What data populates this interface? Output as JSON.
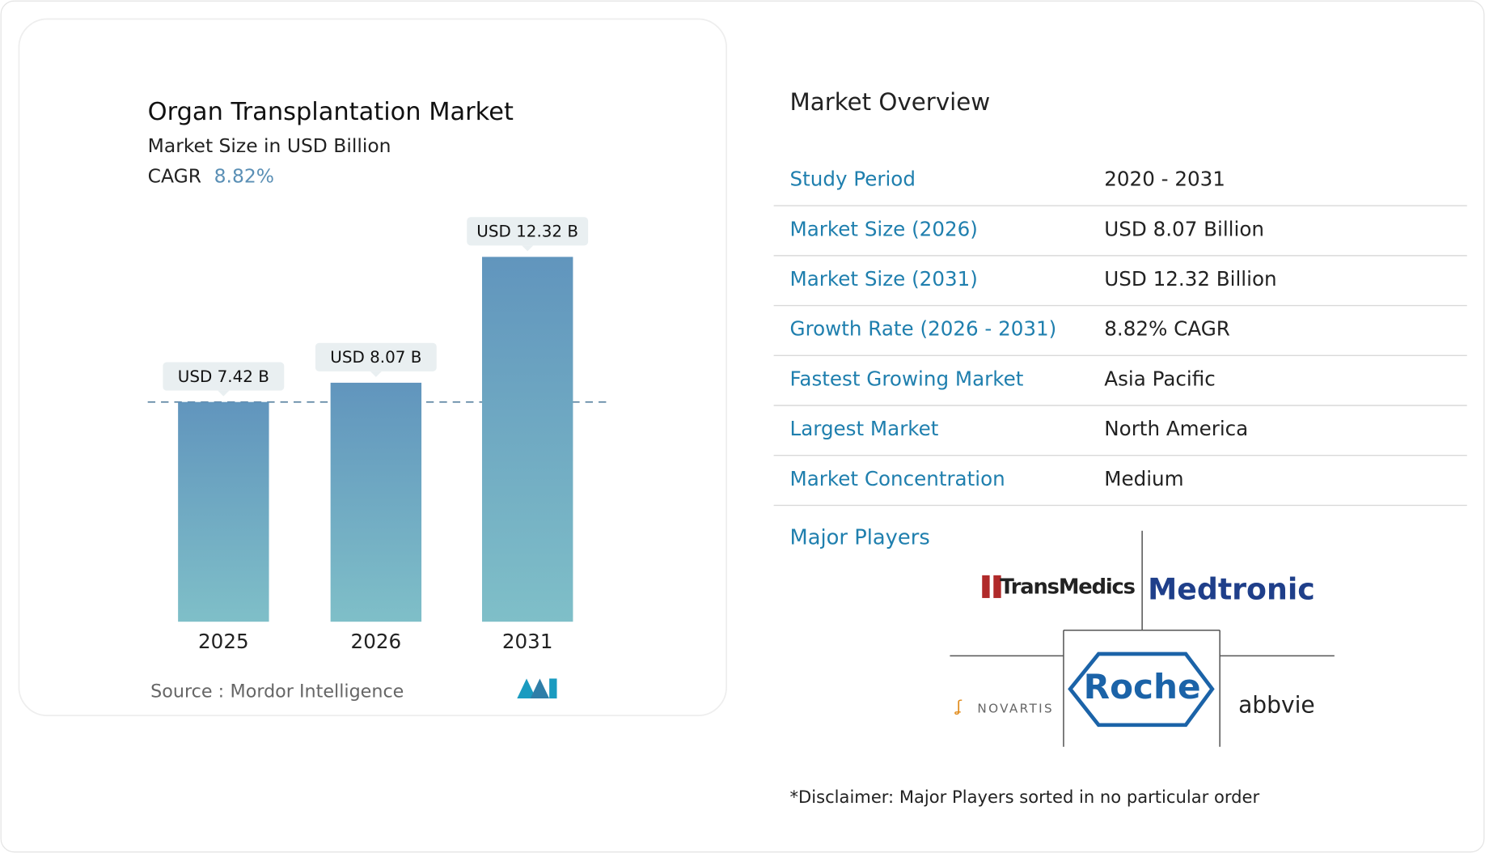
{
  "chart_data": {
    "type": "bar",
    "title": "Organ Transplantation Market",
    "subtitle": "Market Size in USD Billion",
    "cagr_label": "CAGR",
    "cagr": "8.82%",
    "categories": [
      "2025",
      "2026",
      "2031"
    ],
    "values": [
      7.42,
      8.07,
      12.32
    ],
    "value_labels": [
      "USD 7.42 B",
      "USD 8.07 B",
      "USD 12.32 B"
    ],
    "color": "#6498bd",
    "source_label": "Source :",
    "source": "Mordor Intelligence"
  },
  "overview": {
    "title": "Market Overview",
    "rows": [
      [
        "Study Period",
        "2020 - 2031"
      ],
      [
        "Market Size (2026)",
        "USD 8.07 Billion"
      ],
      [
        "Market Size (2031)",
        "USD 12.32 Billion"
      ],
      [
        "Growth Rate (2026 - 2031)",
        "8.82% CAGR"
      ],
      [
        "Fastest Growing Market",
        "Asia Pacific"
      ],
      [
        "Largest Market",
        "North America"
      ],
      [
        "Market Concentration",
        "Medium"
      ]
    ],
    "players_title": "Major Players",
    "players": [
      "TransMedics",
      "Medtronic",
      "Roche",
      "NOVARTIS",
      "abbvie"
    ],
    "disclaimer": "*Disclaimer: Major Players sorted in no particular order"
  }
}
